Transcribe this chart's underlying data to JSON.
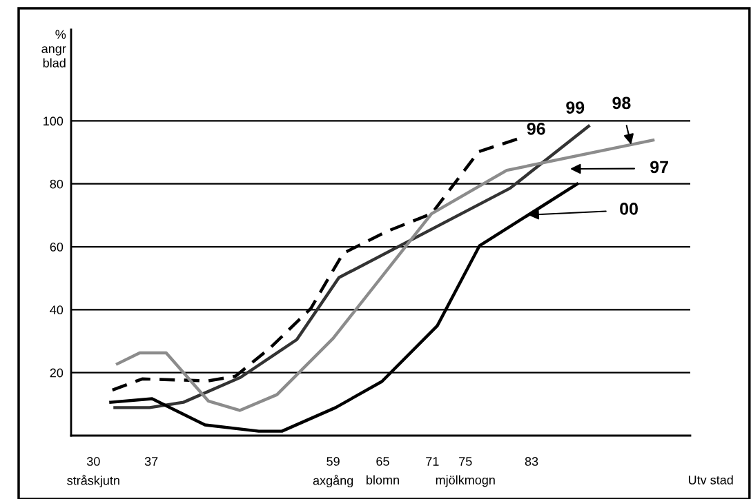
{
  "chart_data": {
    "type": "line",
    "ylabel": "%\nangr\nblad",
    "xlabel": "Utv stad",
    "xlim": [
      27.3,
      102.2
    ],
    "ylim": [
      0,
      129
    ],
    "xticks": [
      30,
      37,
      59,
      65,
      71,
      75,
      83
    ],
    "yticks": [
      20,
      40,
      60,
      80,
      100
    ],
    "grid": "y",
    "series": [
      {
        "name": "96",
        "color": "#000000",
        "line_style": "dashed",
        "x": [
          32.3,
          35.9,
          43.9,
          47.2,
          51.4,
          56.3,
          60.2,
          65.6,
          70.9,
          76.6,
          81.7
        ],
        "values": [
          14.5,
          18.0,
          17.4,
          18.9,
          27.9,
          40.4,
          57.9,
          65.0,
          70.5,
          90.2,
          94.6
        ]
      },
      {
        "name": "99",
        "color": "#333333",
        "line_style": "solid",
        "x": [
          32.6,
          36.8,
          40.9,
          47.8,
          54.6,
          59.7,
          80.4,
          89.9
        ],
        "values": [
          8.9,
          8.9,
          10.6,
          18.5,
          30.5,
          50.2,
          78.6,
          98.3
        ]
      },
      {
        "name": "98",
        "color": "#8c8c8c",
        "line_style": "solid",
        "x": [
          32.9,
          35.6,
          38.8,
          43.9,
          47.7,
          52.2,
          59.0,
          70.9,
          80.0,
          97.7
        ],
        "values": [
          22.8,
          26.3,
          26.3,
          11.0,
          8.0,
          13.0,
          30.9,
          70.5,
          84.3,
          93.9
        ]
      },
      {
        "name": "00",
        "color": "#000000",
        "line_style": "solid",
        "x": [
          32.1,
          37.1,
          43.5,
          50.0,
          52.8,
          59.3,
          64.9,
          71.6,
          76.7,
          88.5
        ],
        "values": [
          10.6,
          11.7,
          3.4,
          1.4,
          1.4,
          8.9,
          17.2,
          34.9,
          60.3,
          79.9
        ]
      }
    ],
    "annotations": [
      "stråskjutn",
      "axgång",
      "blomn",
      "mjölkmogn",
      "97"
    ]
  }
}
